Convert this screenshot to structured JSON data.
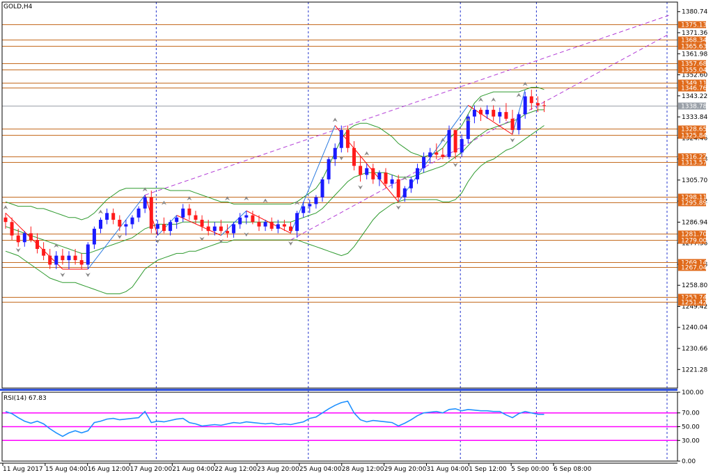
{
  "symbol_label": "GOLD,H4",
  "rsi_label": "RSI(14) 67.83",
  "colors": {
    "bull": "#1a1aff",
    "bear": "#ff1a1a",
    "level": "#c46a1e",
    "label_bg": "#e06a1a",
    "band": "#2e9a2e",
    "channel": "#b23bd6",
    "rsi_line": "#1e90ff",
    "rsi_level": "#ff00ff",
    "separator": "#3355dd",
    "zigzag_up": "#2a7ae0",
    "zigzag_down": "#ff0000"
  },
  "chart_data": [
    {
      "type": "candlestick",
      "ylim": [
        1213,
        1385
      ],
      "y_ticks": [
        "1380.74",
        "1371.36",
        "1361.98",
        "1352.60",
        "1343.22",
        "1333.84",
        "1324.46",
        "1315.08",
        "1305.70",
        "1296.32",
        "1286.94",
        "1277.56",
        "1268.18",
        "1258.80",
        "1249.42",
        "1240.04",
        "1230.66",
        "1221.28"
      ],
      "x_labels": [
        "11 Aug 2017",
        "15 Aug 04:00",
        "16 Aug 12:00",
        "17 Aug 20:00",
        "21 Aug 04:00",
        "22 Aug 12:00",
        "23 Aug 20:00",
        "25 Aug 04:00",
        "28 Aug 12:00",
        "29 Aug 20:00",
        "31 Aug 04:00",
        "1 Sep 12:00",
        "5 Sep 00:00",
        "6 Sep 08:00"
      ],
      "levels": [
        "1375.13",
        "1368.34",
        "1365.63",
        "1357.68",
        "1355.04",
        "1349.11",
        "1346.76",
        "1328.65",
        "1325.84",
        "1316.22",
        "1313.57",
        "1298.11",
        "1295.89",
        "1281.70",
        "1279.00",
        "1269.14",
        "1267.04",
        "1253.74",
        "1251.42"
      ],
      "current_price": "1338.78",
      "candles": [
        [
          1289,
          1291,
          1284,
          1287
        ],
        [
          1287,
          1289,
          1279,
          1281
        ],
        [
          1281,
          1284,
          1276,
          1278
        ],
        [
          1278,
          1283,
          1276,
          1282
        ],
        [
          1282,
          1285,
          1278,
          1279
        ],
        [
          1279,
          1282,
          1273,
          1275
        ],
        [
          1275,
          1278,
          1270,
          1272
        ],
        [
          1272,
          1275,
          1266,
          1268
        ],
        [
          1268,
          1274,
          1266,
          1272
        ],
        [
          1272,
          1275,
          1268,
          1270
        ],
        [
          1270,
          1274,
          1266,
          1272
        ],
        [
          1272,
          1275,
          1268,
          1270
        ],
        [
          1270,
          1273,
          1266,
          1268
        ],
        [
          1268,
          1278,
          1266,
          1277
        ],
        [
          1277,
          1285,
          1275,
          1284
        ],
        [
          1284,
          1289,
          1282,
          1288
        ],
        [
          1288,
          1293,
          1286,
          1291
        ],
        [
          1291,
          1293,
          1286,
          1288
        ],
        [
          1288,
          1290,
          1283,
          1285
        ],
        [
          1285,
          1288,
          1281,
          1286
        ],
        [
          1286,
          1290,
          1284,
          1289
        ],
        [
          1289,
          1294,
          1287,
          1293
        ],
        [
          1293,
          1299,
          1291,
          1298
        ],
        [
          1298,
          1301,
          1282,
          1284
        ],
        [
          1284,
          1288,
          1281,
          1286
        ],
        [
          1286,
          1289,
          1282,
          1283
        ],
        [
          1283,
          1288,
          1281,
          1287
        ],
        [
          1287,
          1290,
          1284,
          1289
        ],
        [
          1289,
          1295,
          1287,
          1293
        ],
        [
          1293,
          1295,
          1288,
          1290
        ],
        [
          1290,
          1292,
          1286,
          1288
        ],
        [
          1288,
          1290,
          1283,
          1285
        ],
        [
          1285,
          1288,
          1281,
          1283
        ],
        [
          1283,
          1287,
          1281,
          1285
        ],
        [
          1285,
          1288,
          1282,
          1283
        ],
        [
          1283,
          1286,
          1280,
          1282
        ],
        [
          1282,
          1287,
          1280,
          1286
        ],
        [
          1286,
          1291,
          1284,
          1289
        ],
        [
          1289,
          1292,
          1286,
          1290
        ],
        [
          1290,
          1292,
          1286,
          1287
        ],
        [
          1287,
          1290,
          1283,
          1285
        ],
        [
          1285,
          1288,
          1283,
          1287
        ],
        [
          1287,
          1289,
          1283,
          1284
        ],
        [
          1284,
          1288,
          1282,
          1286
        ],
        [
          1286,
          1288,
          1283,
          1285
        ],
        [
          1285,
          1287,
          1282,
          1283
        ],
        [
          1283,
          1292,
          1280,
          1291
        ],
        [
          1291,
          1296,
          1289,
          1294
        ],
        [
          1294,
          1297,
          1291,
          1295
        ],
        [
          1295,
          1299,
          1293,
          1298
        ],
        [
          1298,
          1307,
          1296,
          1306
        ],
        [
          1306,
          1316,
          1304,
          1315
        ],
        [
          1315,
          1322,
          1312,
          1320
        ],
        [
          1320,
          1330,
          1318,
          1328
        ],
        [
          1328,
          1330,
          1318,
          1320
        ],
        [
          1320,
          1323,
          1310,
          1312
        ],
        [
          1312,
          1316,
          1305,
          1308
        ],
        [
          1308,
          1313,
          1306,
          1311
        ],
        [
          1311,
          1313,
          1304,
          1306
        ],
        [
          1306,
          1310,
          1303,
          1309
        ],
        [
          1309,
          1311,
          1302,
          1304
        ],
        [
          1304,
          1308,
          1302,
          1306
        ],
        [
          1306,
          1308,
          1296,
          1298
        ],
        [
          1298,
          1303,
          1296,
          1302
        ],
        [
          1302,
          1307,
          1300,
          1306
        ],
        [
          1306,
          1313,
          1304,
          1311
        ],
        [
          1311,
          1318,
          1309,
          1316
        ],
        [
          1316,
          1320,
          1313,
          1318
        ],
        [
          1318,
          1322,
          1315,
          1317
        ],
        [
          1317,
          1320,
          1315,
          1316
        ],
        [
          1316,
          1330,
          1315,
          1328
        ],
        [
          1328,
          1328,
          1315,
          1318
        ],
        [
          1318,
          1326,
          1316,
          1324
        ],
        [
          1324,
          1335,
          1322,
          1334
        ],
        [
          1334,
          1339,
          1331,
          1337
        ],
        [
          1337,
          1338,
          1332,
          1335
        ],
        [
          1335,
          1339,
          1333,
          1337
        ],
        [
          1337,
          1339,
          1332,
          1334
        ],
        [
          1334,
          1338,
          1331,
          1336
        ],
        [
          1336,
          1340,
          1332,
          1333
        ],
        [
          1333,
          1337,
          1326,
          1328
        ],
        [
          1328,
          1336,
          1326,
          1335
        ],
        [
          1335,
          1345,
          1333,
          1343
        ],
        [
          1343,
          1346,
          1337,
          1340
        ],
        [
          1340,
          1343,
          1336,
          1339
        ],
        [
          1339,
          1341,
          1336,
          1338.78
        ]
      ],
      "bollinger": {
        "upper": [
          1296,
          1295,
          1294,
          1294,
          1294,
          1293,
          1293,
          1292,
          1291,
          1290,
          1289,
          1289,
          1288,
          1289,
          1291,
          1294,
          1297,
          1299,
          1301,
          1302,
          1302,
          1302,
          1302,
          1302,
          1302,
          1302,
          1301,
          1301,
          1301,
          1301,
          1300,
          1299,
          1298,
          1297,
          1296,
          1296,
          1295,
          1295,
          1295,
          1295,
          1295,
          1295,
          1295,
          1295,
          1295,
          1295,
          1296,
          1298,
          1300,
          1302,
          1306,
          1312,
          1318,
          1324,
          1328,
          1330,
          1331,
          1331,
          1330,
          1329,
          1327,
          1325,
          1322,
          1320,
          1318,
          1317,
          1316,
          1317,
          1318,
          1320,
          1324,
          1327,
          1330,
          1335,
          1340,
          1343,
          1344,
          1345,
          1345,
          1345,
          1345,
          1345,
          1346,
          1347,
          1347,
          1346
        ],
        "middle": [
          1285,
          1284,
          1283,
          1282,
          1281,
          1280,
          1279,
          1278,
          1277,
          1276,
          1275,
          1274,
          1273,
          1273,
          1274,
          1275,
          1276,
          1277,
          1278,
          1279,
          1280,
          1282,
          1284,
          1285,
          1286,
          1286,
          1286,
          1286,
          1287,
          1287,
          1287,
          1287,
          1287,
          1287,
          1287,
          1287,
          1287,
          1287,
          1287,
          1287,
          1287,
          1287,
          1287,
          1287,
          1287,
          1287,
          1288,
          1289,
          1290,
          1291,
          1293,
          1296,
          1299,
          1302,
          1305,
          1307,
          1308,
          1309,
          1309,
          1309,
          1309,
          1308,
          1307,
          1307,
          1307,
          1308,
          1309,
          1310,
          1311,
          1312,
          1314,
          1316,
          1318,
          1321,
          1324,
          1326,
          1328,
          1329,
          1330,
          1331,
          1332,
          1333,
          1335,
          1336,
          1337,
          1337
        ],
        "lower": [
          1274,
          1273,
          1272,
          1270,
          1268,
          1266,
          1264,
          1262,
          1261,
          1260,
          1260,
          1260,
          1259,
          1258,
          1257,
          1256,
          1255,
          1255,
          1255,
          1256,
          1258,
          1262,
          1266,
          1268,
          1270,
          1271,
          1272,
          1273,
          1273,
          1274,
          1274,
          1275,
          1276,
          1277,
          1278,
          1278,
          1279,
          1279,
          1279,
          1279,
          1279,
          1279,
          1279,
          1279,
          1279,
          1279,
          1279,
          1278,
          1277,
          1276,
          1275,
          1274,
          1273,
          1272,
          1273,
          1276,
          1280,
          1284,
          1288,
          1291,
          1293,
          1295,
          1296,
          1297,
          1297,
          1297,
          1297,
          1297,
          1297,
          1296,
          1296,
          1297,
          1300,
          1305,
          1309,
          1312,
          1314,
          1315,
          1317,
          1319,
          1320,
          1322,
          1324,
          1326,
          1328,
          1330
        ]
      },
      "zigzag": [
        [
          0,
          1291
        ],
        [
          9,
          1266
        ],
        [
          13,
          1266
        ],
        [
          22,
          1299
        ],
        [
          24,
          1281
        ],
        [
          27,
          1290
        ],
        [
          34,
          1281
        ],
        [
          38,
          1292
        ],
        [
          45,
          1282
        ],
        [
          52,
          1330
        ],
        [
          62,
          1296
        ],
        [
          73,
          1339
        ],
        [
          80,
          1326
        ],
        [
          82,
          1346
        ]
      ],
      "channel_lines": [
        [
          [
            22,
            1299
          ],
          [
            86,
            1361
          ]
        ],
        [
          [
            45,
            1279
          ],
          [
            86,
            1342
          ]
        ]
      ],
      "fractals_up": [
        [
          0,
          1292
        ],
        [
          8,
          1275
        ],
        [
          15,
          1290
        ],
        [
          22,
          1300
        ],
        [
          25,
          1294
        ],
        [
          29,
          1296
        ],
        [
          35,
          1296
        ],
        [
          38,
          1296
        ],
        [
          41,
          1295
        ],
        [
          46,
          1294
        ],
        [
          52,
          1331
        ],
        [
          57,
          1316
        ],
        [
          63,
          1305
        ],
        [
          69,
          1322
        ],
        [
          73,
          1331
        ],
        [
          75,
          1340
        ],
        [
          77,
          1340
        ],
        [
          81,
          1342
        ],
        [
          82,
          1347
        ]
      ],
      "fractals_down": [
        [
          2,
          1276
        ],
        [
          9,
          1265
        ],
        [
          13,
          1265
        ],
        [
          18,
          1282
        ],
        [
          24,
          1280
        ],
        [
          31,
          1281
        ],
        [
          34,
          1280
        ],
        [
          38,
          1283
        ],
        [
          45,
          1279
        ],
        [
          53,
          1317
        ],
        [
          56,
          1304
        ],
        [
          62,
          1295
        ],
        [
          71,
          1314
        ],
        [
          80,
          1325
        ]
      ],
      "vline_indices": [
        24,
        48,
        72,
        84
      ]
    },
    {
      "type": "line",
      "name": "RSI(14) 67.83",
      "ylim": [
        0,
        100
      ],
      "y_ticks": [
        "100.00",
        "70.00",
        "50.00",
        "30.00",
        "0.00"
      ],
      "levels": [
        70,
        50,
        30
      ],
      "values": [
        72,
        69,
        63,
        58,
        55,
        58,
        54,
        47,
        41,
        36,
        41,
        44,
        41,
        44,
        56,
        58,
        61,
        62,
        60,
        61,
        62,
        63,
        72,
        56,
        58,
        57,
        59,
        61,
        62,
        56,
        54,
        51,
        52,
        53,
        52,
        54,
        56,
        55,
        57,
        56,
        55,
        54,
        55,
        53,
        54,
        53,
        55,
        57,
        62,
        64,
        70,
        76,
        81,
        85,
        87,
        70,
        60,
        57,
        59,
        58,
        57,
        56,
        51,
        55,
        60,
        66,
        70,
        71,
        72,
        70,
        75,
        76,
        73,
        75,
        74,
        73,
        73,
        72,
        72,
        67,
        63,
        69,
        72,
        70,
        68,
        67.83
      ]
    }
  ]
}
